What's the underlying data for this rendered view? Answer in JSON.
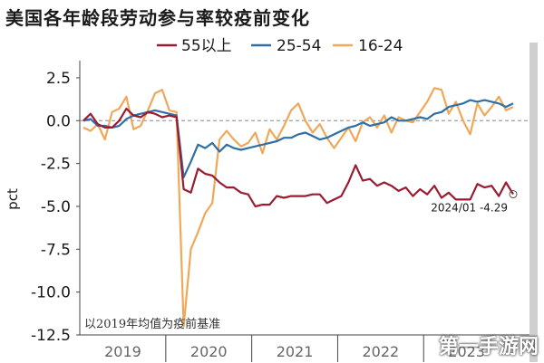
{
  "chart_data": {
    "type": "line",
    "title": "美国各年龄段劳动参与率较疫前变化",
    "ylabel": "pct",
    "xlabel": "",
    "ylim": [
      -12.5,
      3.5
    ],
    "yticks": [
      2.5,
      0.0,
      -2.5,
      -5.0,
      -7.5,
      -10.0,
      -12.5
    ],
    "ytick_labels": [
      "2.5",
      "0.0",
      "-2.5",
      "-5.0",
      "-7.5",
      "-10.0",
      "-12.5"
    ],
    "x_year_labels": [
      "2019",
      "2020",
      "2021",
      "2022",
      "2023"
    ],
    "x": [
      "2019-01",
      "2019-02",
      "2019-03",
      "2019-04",
      "2019-05",
      "2019-06",
      "2019-07",
      "2019-08",
      "2019-09",
      "2019-10",
      "2019-11",
      "2019-12",
      "2020-01",
      "2020-02",
      "2020-03",
      "2020-04",
      "2020-05",
      "2020-06",
      "2020-07",
      "2020-08",
      "2020-09",
      "2020-10",
      "2020-11",
      "2020-12",
      "2021-01",
      "2021-02",
      "2021-03",
      "2021-04",
      "2021-05",
      "2021-06",
      "2021-07",
      "2021-08",
      "2021-09",
      "2021-10",
      "2021-11",
      "2021-12",
      "2022-01",
      "2022-02",
      "2022-03",
      "2022-04",
      "2022-05",
      "2022-06",
      "2022-07",
      "2022-08",
      "2022-09",
      "2022-10",
      "2022-11",
      "2022-12",
      "2023-01",
      "2023-02",
      "2023-03",
      "2023-04",
      "2023-05",
      "2023-06",
      "2023-07",
      "2023-08",
      "2023-09",
      "2023-10",
      "2023-11",
      "2023-12",
      "2024-01"
    ],
    "series": [
      {
        "name": "55以上",
        "color": "#9b1b30",
        "values": [
          0.0,
          0.4,
          -0.2,
          -0.4,
          -0.4,
          0.0,
          0.7,
          0.3,
          0.2,
          0.5,
          0.4,
          0.2,
          0.3,
          0.2,
          -4.0,
          -4.2,
          -2.8,
          -3.1,
          -3.2,
          -3.6,
          -3.9,
          -3.9,
          -4.2,
          -4.3,
          -5.0,
          -4.9,
          -4.9,
          -4.4,
          -4.5,
          -4.4,
          -4.4,
          -4.4,
          -4.3,
          -4.3,
          -4.8,
          -4.6,
          -4.4,
          -3.6,
          -2.6,
          -3.5,
          -3.4,
          -3.8,
          -3.6,
          -3.8,
          -4.1,
          -3.9,
          -4.4,
          -4.0,
          -4.3,
          -3.8,
          -4.5,
          -4.2,
          -4.6,
          -4.6,
          -4.6,
          -3.7,
          -3.9,
          -3.8,
          -4.4,
          -3.6,
          -4.29
        ]
      },
      {
        "name": "25-54",
        "color": "#2e6fa7",
        "values": [
          0.0,
          0.1,
          -0.3,
          -0.3,
          -0.4,
          -0.3,
          0.1,
          0.3,
          0.4,
          0.5,
          0.6,
          0.5,
          0.4,
          0.3,
          -3.3,
          -2.4,
          -1.4,
          -1.6,
          -1.3,
          -1.8,
          -1.4,
          -1.6,
          -1.7,
          -1.6,
          -1.5,
          -1.4,
          -1.3,
          -1.2,
          -1.0,
          -1.0,
          -0.8,
          -0.7,
          -0.9,
          -1.1,
          -1.0,
          -0.8,
          -0.6,
          -0.4,
          -0.3,
          -0.1,
          -0.3,
          -0.2,
          -0.1,
          0.2,
          0.0,
          0.0,
          0.1,
          0.2,
          0.1,
          0.4,
          0.5,
          0.8,
          0.9,
          1.0,
          1.2,
          1.1,
          1.2,
          1.1,
          1.0,
          0.8,
          1.0
        ]
      },
      {
        "name": "16-24",
        "color": "#f0a858",
        "values": [
          -0.4,
          -0.6,
          -0.2,
          -1.1,
          0.5,
          0.7,
          1.4,
          -0.5,
          -0.3,
          0.6,
          1.6,
          1.8,
          0.6,
          0.5,
          -12.0,
          -7.5,
          -6.5,
          -5.4,
          -4.8,
          -1.1,
          -0.6,
          -1.1,
          -1.5,
          -1.3,
          -0.7,
          -1.9,
          -0.5,
          -1.1,
          -0.3,
          0.6,
          1.0,
          0.0,
          -0.7,
          -0.2,
          -1.0,
          -1.6,
          -1.0,
          -0.4,
          -1.2,
          -0.1,
          0.2,
          -0.4,
          0.3,
          -0.7,
          0.2,
          0.0,
          -0.1,
          0.5,
          1.1,
          1.9,
          1.8,
          0.4,
          1.1,
          0.0,
          -0.8,
          1.0,
          0.3,
          0.8,
          1.4,
          0.6,
          0.8
        ]
      }
    ],
    "annotation": "2024/01 -4.29",
    "note": "以2019年均值为疫前基准",
    "legend_position": "top",
    "grid": false
  },
  "watermark": "第一手游网"
}
